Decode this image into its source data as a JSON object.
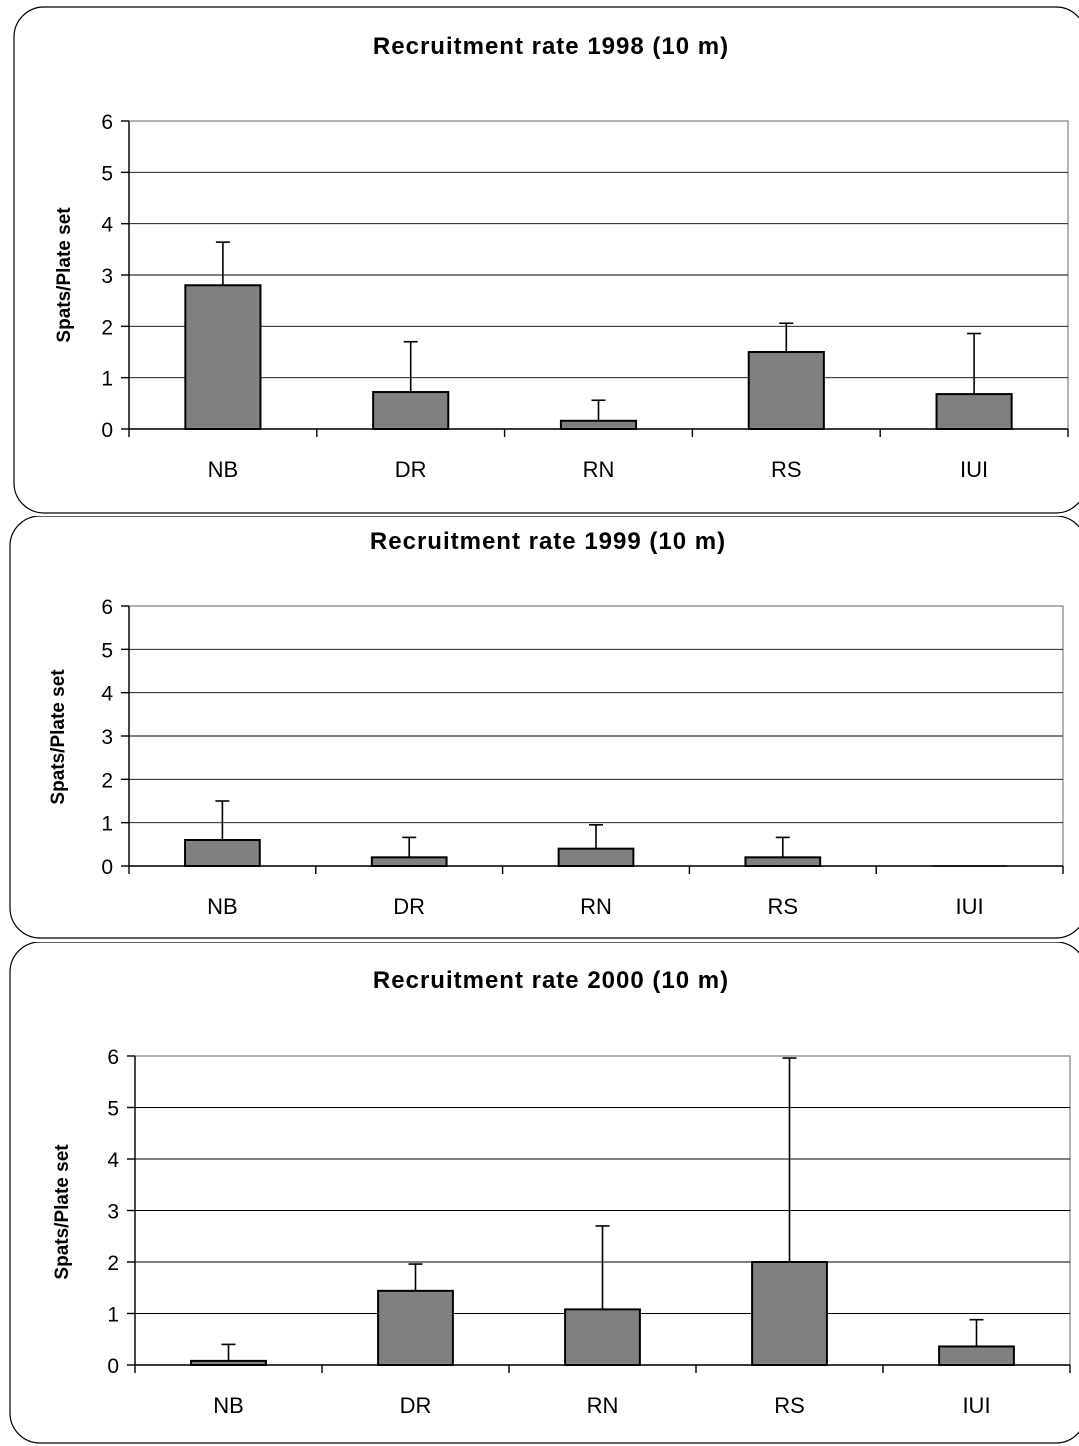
{
  "chart_data": [
    {
      "type": "bar",
      "title": "Recruitment rate 1998 (10 m)",
      "ylabel": "Spats/Plate set",
      "xlabel": "",
      "categories": [
        "NB",
        "DR",
        "RN",
        "RS",
        "IUI"
      ],
      "values": [
        2.8,
        0.72,
        0.16,
        1.5,
        0.68
      ],
      "errors": [
        0.84,
        0.98,
        0.4,
        0.56,
        1.18
      ],
      "ylim": [
        0,
        6
      ],
      "yticks": [
        "0",
        "1",
        "2",
        "3",
        "4",
        "5",
        "6"
      ],
      "grid": true,
      "colors": {
        "bar": "#808080"
      }
    },
    {
      "type": "bar",
      "title": "Recruitment rate 1999 (10 m)",
      "ylabel": "Spats/Plate set",
      "xlabel": "",
      "categories": [
        "NB",
        "DR",
        "RN",
        "RS",
        "IUI"
      ],
      "values": [
        0.6,
        0.2,
        0.4,
        0.2,
        0.0
      ],
      "errors": [
        0.9,
        0.46,
        0.55,
        0.46,
        0.0
      ],
      "ylim": [
        0,
        6
      ],
      "yticks": [
        "0",
        "1",
        "2",
        "3",
        "4",
        "5",
        "6"
      ],
      "grid": true,
      "colors": {
        "bar": "#808080"
      }
    },
    {
      "type": "bar",
      "title": "Recruitment rate 2000 (10 m)",
      "ylabel": "Spats/Plate set",
      "xlabel": "",
      "categories": [
        "NB",
        "DR",
        "RN",
        "RS",
        "IUI"
      ],
      "values": [
        0.08,
        1.44,
        1.08,
        2.0,
        0.36
      ],
      "errors": [
        0.32,
        0.52,
        1.62,
        3.96,
        0.52
      ],
      "ylim": [
        0,
        6
      ],
      "yticks": [
        "0",
        "1",
        "2",
        "3",
        "4",
        "5",
        "6"
      ],
      "grid": true,
      "colors": {
        "bar": "#808080"
      }
    }
  ]
}
